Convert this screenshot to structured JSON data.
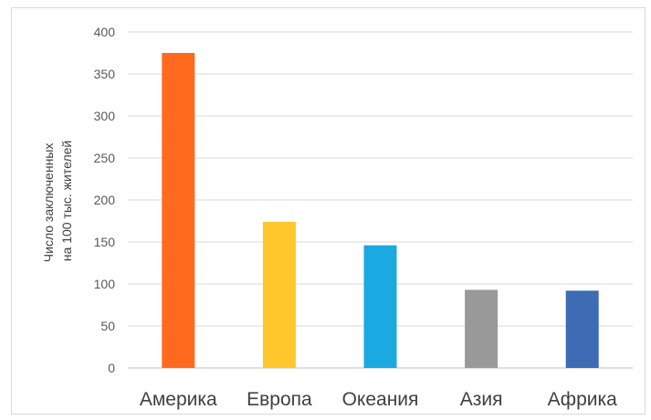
{
  "chart_data": {
    "type": "bar",
    "categories": [
      "Америка",
      "Европа",
      "Океания",
      "Азия",
      "Африка"
    ],
    "values": [
      375,
      174,
      146,
      93,
      92
    ],
    "colors": [
      "#ff6a1f",
      "#ffc72c",
      "#1aa9e0",
      "#999999",
      "#3d6cb4"
    ],
    "ylabel_lines": [
      "Число заключенных",
      "на 100 тыс. жителей"
    ],
    "ylim": [
      0,
      400
    ],
    "yticks": [
      0,
      50,
      100,
      150,
      200,
      250,
      300,
      350,
      400
    ],
    "grid": true,
    "legend": "none"
  }
}
